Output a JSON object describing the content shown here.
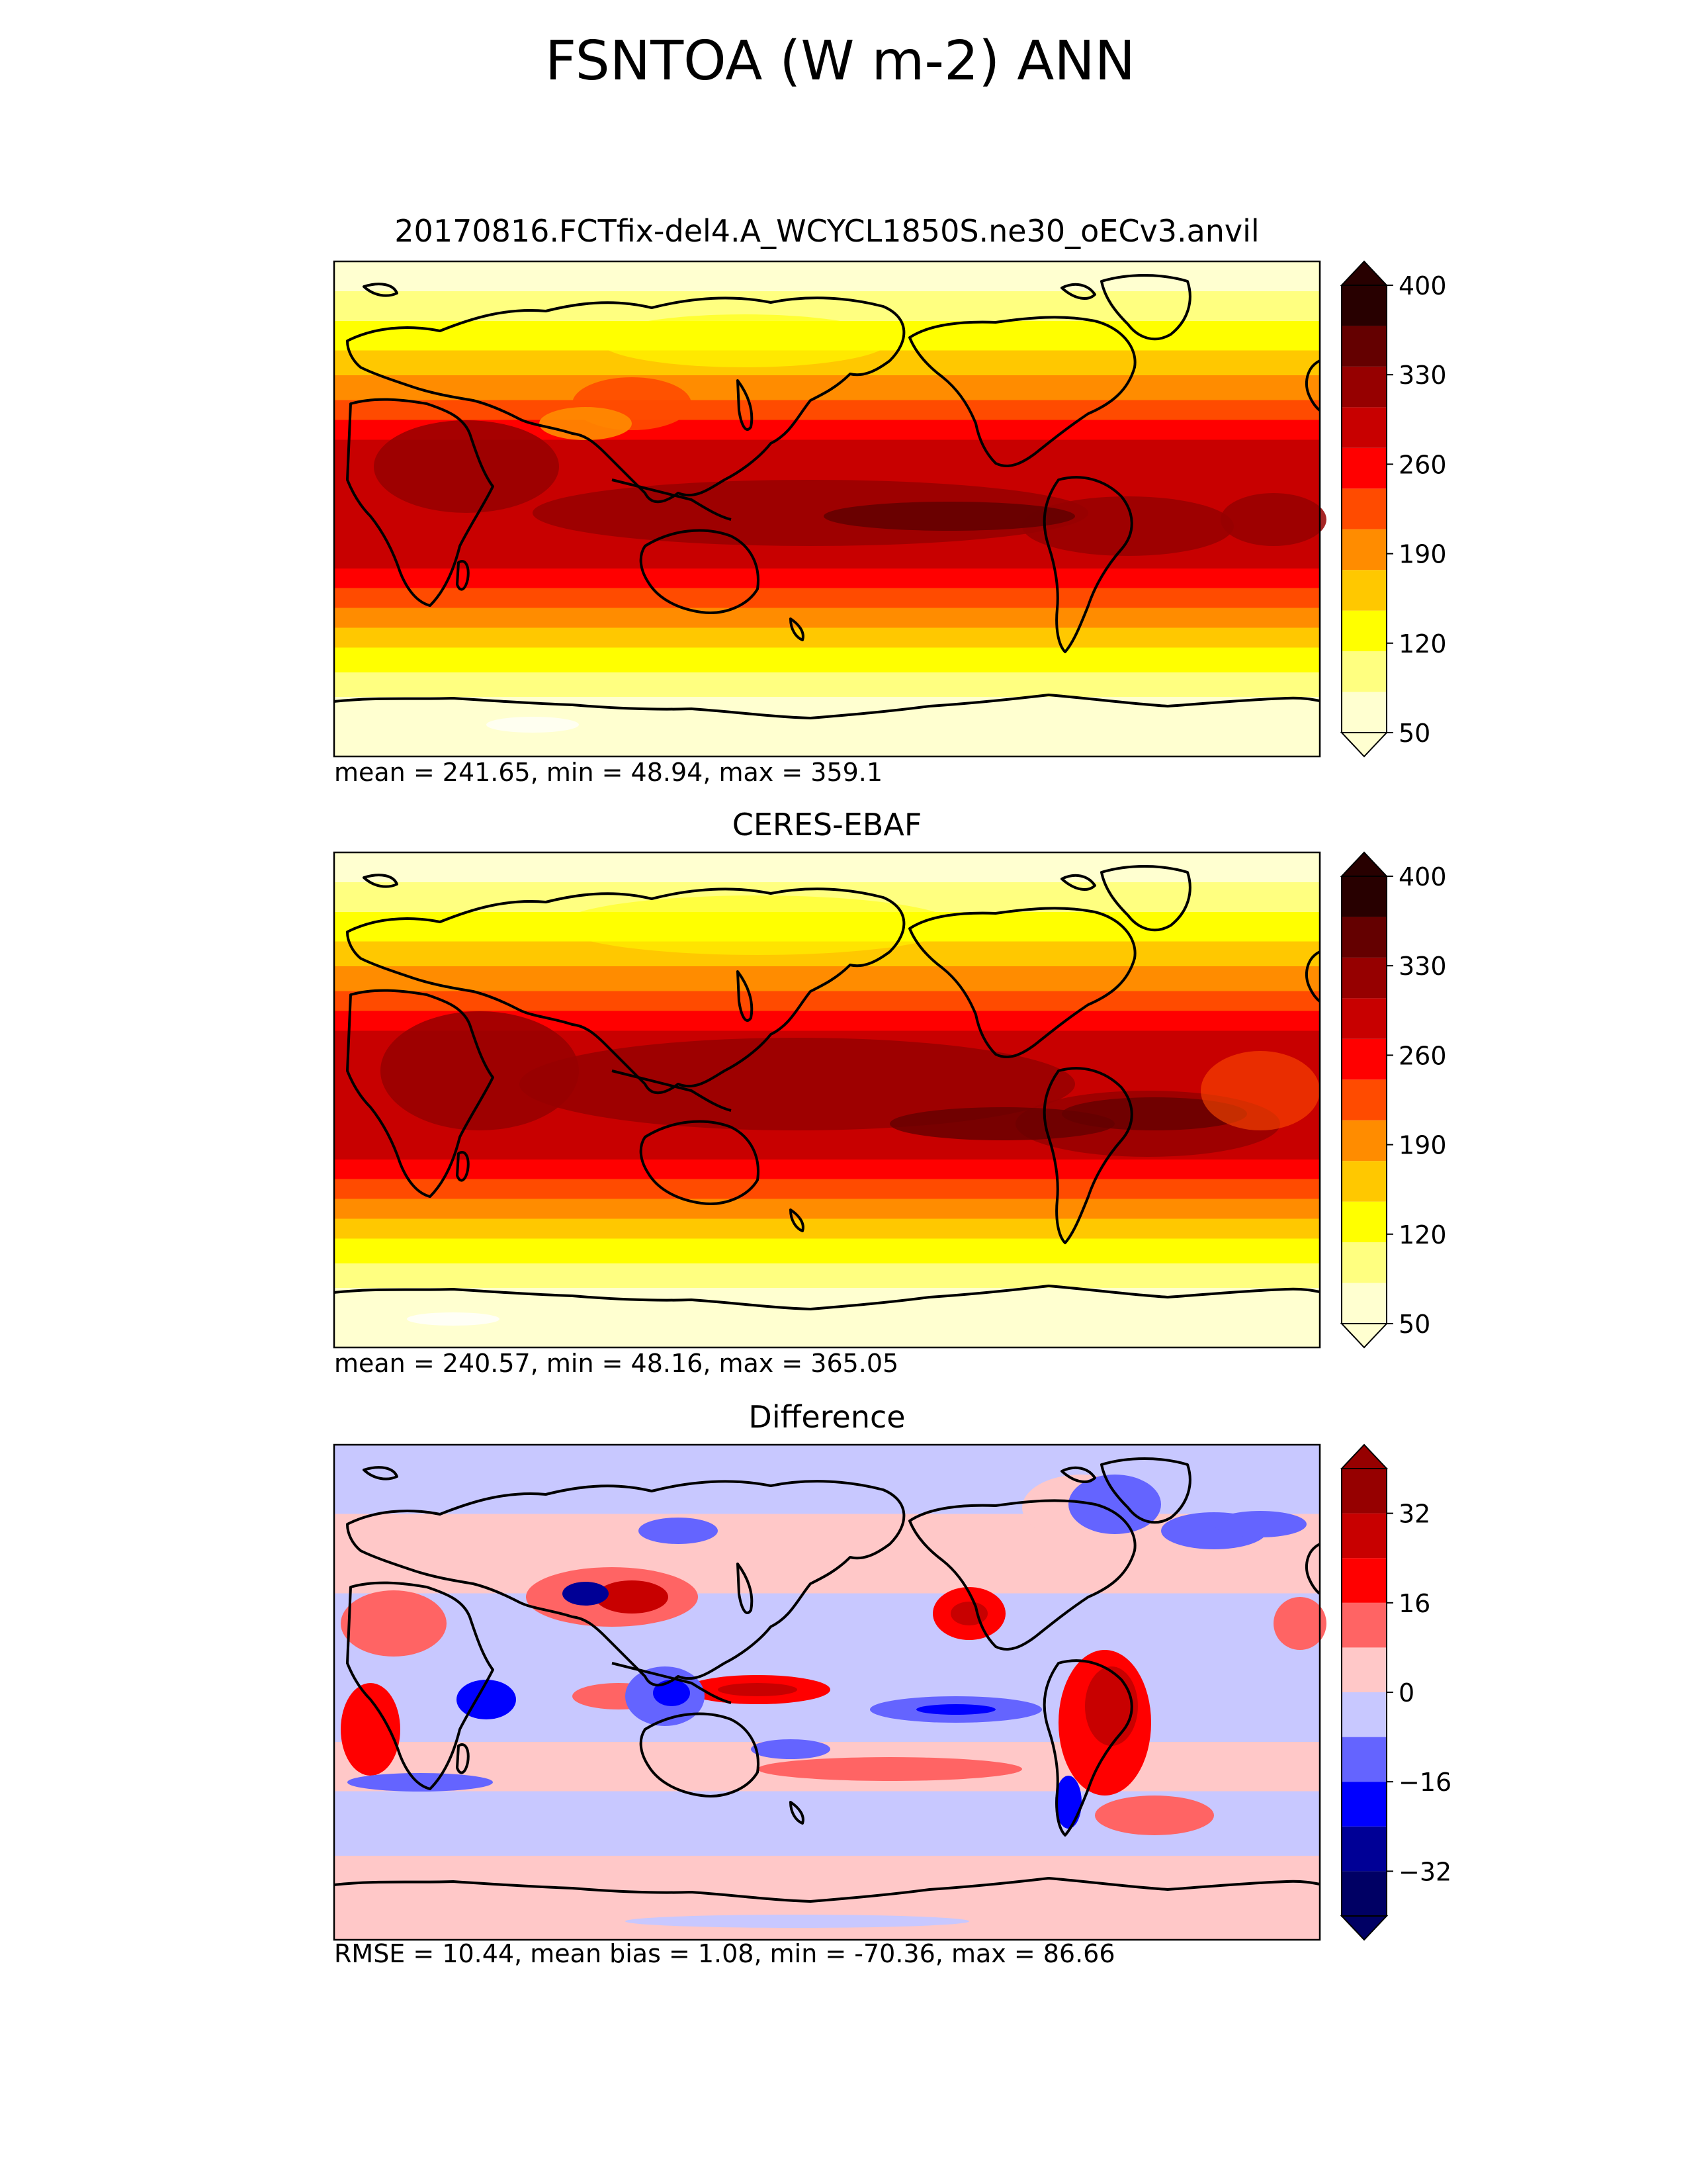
{
  "figure": {
    "title": "FSNTOA (W m-2) ANN"
  },
  "panels": [
    {
      "id": "test",
      "title": "20170816.FCTfix-del4.A_WCYCL1850S.ne30_oECv3.anvil",
      "stats": "mean = 241.65, min = 48.94, max = 359.1",
      "kind": "field"
    },
    {
      "id": "reference",
      "title": "CERES-EBAF",
      "stats": "mean = 240.57, min = 48.16, max = 365.05",
      "kind": "field"
    },
    {
      "id": "difference",
      "title": "Difference",
      "stats": "RMSE = 10.44, mean bias = 1.08, min = -70.36, max = 86.66",
      "kind": "diff"
    }
  ],
  "colorbars": {
    "field": {
      "tick_labels": [
        "400",
        "330",
        "260",
        "190",
        "120",
        "50"
      ],
      "levels": [
        50,
        85,
        120,
        155,
        190,
        225,
        260,
        295,
        330,
        365,
        400
      ],
      "colors": [
        "#ffffd0",
        "#ffff80",
        "#ffff00",
        "#ffc800",
        "#ff8c00",
        "#ff4b00",
        "#ff0000",
        "#c80000",
        "#960000",
        "#640000",
        "#280000"
      ],
      "extend": "both"
    },
    "diff": {
      "tick_labels": [
        "32",
        "16",
        "0",
        "−16",
        "−32"
      ],
      "levels": [
        -40,
        -32,
        -24,
        -16,
        -8,
        0,
        8,
        16,
        24,
        32,
        40
      ],
      "colors": [
        "#000064",
        "#000096",
        "#0000ff",
        "#6464ff",
        "#c8c8ff",
        "#ffc8c8",
        "#ff6464",
        "#ff0000",
        "#c80000",
        "#960000"
      ],
      "extend": "both"
    }
  }
}
